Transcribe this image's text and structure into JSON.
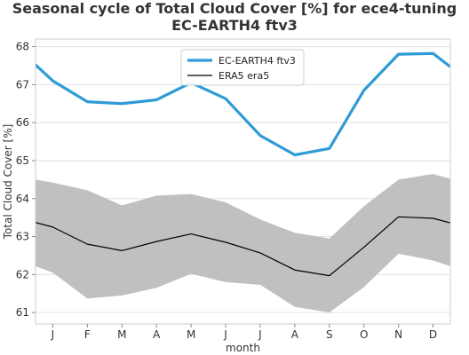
{
  "chart_data": {
    "type": "line",
    "title": "Seasonal cycle of Total Cloud Cover [%] for ece4-tuning EC-EARTH4 ftv3",
    "xlabel": "month",
    "ylabel": "Total Cloud Cover [%]",
    "categories": [
      "J",
      "F",
      "M",
      "A",
      "M",
      "J",
      "J",
      "A",
      "S",
      "O",
      "N",
      "D"
    ],
    "ylim": [
      60.7,
      68.2
    ],
    "yticks": [
      61,
      62,
      63,
      64,
      65,
      66,
      67,
      68
    ],
    "grid": true,
    "legend_position": "top-center",
    "series": [
      {
        "name": "EC-EARTH4 ftv3",
        "color": "#2e9bd6",
        "x": [
          0.5,
          1,
          2,
          3,
          4,
          5,
          6,
          7,
          8,
          9,
          10,
          11,
          12,
          12.5
        ],
        "values": [
          67.52,
          67.1,
          66.55,
          66.5,
          66.6,
          67.05,
          66.63,
          65.66,
          65.15,
          65.32,
          66.85,
          67.8,
          67.82,
          67.47
        ]
      },
      {
        "name": "ERA5 era5",
        "color": "#000000",
        "x": [
          0.5,
          1,
          2,
          3,
          4,
          5,
          6,
          7,
          8,
          9,
          10,
          11,
          12,
          12.5
        ],
        "values": [
          63.37,
          63.25,
          62.8,
          62.63,
          62.87,
          63.07,
          62.85,
          62.57,
          62.12,
          61.97,
          62.72,
          63.52,
          63.48,
          63.36
        ],
        "range_lower": [
          62.22,
          62.05,
          61.37,
          61.45,
          61.65,
          62.02,
          61.8,
          61.73,
          61.15,
          61.0,
          61.67,
          62.55,
          62.37,
          62.22
        ],
        "range_upper": [
          64.5,
          64.42,
          64.22,
          63.82,
          64.08,
          64.12,
          63.9,
          63.45,
          63.1,
          62.95,
          63.8,
          64.5,
          64.65,
          64.52
        ],
        "range_color": "#c0c0c0"
      }
    ]
  }
}
